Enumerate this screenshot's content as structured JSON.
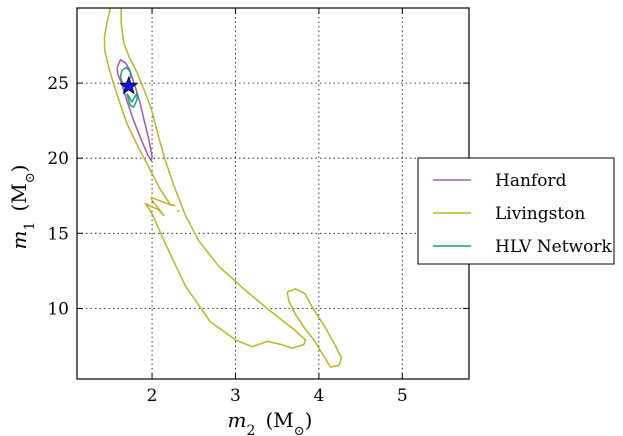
{
  "chart_data": {
    "type": "line",
    "title": "",
    "xlabel_var": "m",
    "xlabel_sub": "2",
    "xlabel_unit": "(M",
    "xlabel_unit_sub": "⊙",
    "xlabel_close": ")",
    "ylabel_var": "m",
    "ylabel_sub": "1",
    "ylabel_unit": "(M",
    "ylabel_unit_sub": "⊙",
    "ylabel_close": ")",
    "xlim": [
      1.1,
      5.8
    ],
    "ylim": [
      5.3,
      30
    ],
    "xticks": [
      2,
      3,
      4,
      5
    ],
    "yticks": [
      10,
      15,
      20,
      25
    ],
    "xtick_labels": [
      "2",
      "3",
      "4",
      "5"
    ],
    "ytick_labels": [
      "10",
      "15",
      "20",
      "25"
    ],
    "grid": true,
    "legend_position": "right",
    "series": [
      {
        "name": "Hanford",
        "color": "#a35aa8",
        "contours": [
          [
            [
              1.58,
              26.0
            ],
            [
              1.62,
              26.55
            ],
            [
              1.68,
              26.35
            ],
            [
              1.73,
              25.9
            ],
            [
              1.79,
              24.9
            ],
            [
              1.85,
              23.8
            ],
            [
              1.91,
              22.4
            ],
            [
              1.96,
              21.3
            ],
            [
              2.0,
              20.1
            ],
            [
              1.99,
              19.85
            ],
            [
              1.95,
              20.2
            ],
            [
              1.88,
              21.1
            ],
            [
              1.78,
              22.5
            ],
            [
              1.7,
              23.8
            ],
            [
              1.64,
              24.9
            ],
            [
              1.59,
              25.6
            ],
            [
              1.58,
              26.0
            ]
          ]
        ]
      },
      {
        "name": "Livingston",
        "color": "#bdb22a",
        "contours": [
          [
            [
              1.5,
              30.0
            ],
            [
              1.46,
              29.0
            ],
            [
              1.43,
              28.1
            ],
            [
              1.43,
              27.3
            ],
            [
              1.46,
              26.5
            ],
            [
              1.52,
              25.3
            ],
            [
              1.6,
              23.9
            ],
            [
              1.7,
              22.3
            ],
            [
              1.82,
              20.9
            ],
            [
              1.96,
              19.4
            ],
            [
              2.1,
              17.9
            ],
            [
              2.22,
              16.9
            ],
            [
              2.28,
              16.85
            ]
          ],
          [
            [
              1.63,
              30.0
            ],
            [
              1.63,
              29.0
            ],
            [
              1.66,
              27.7
            ],
            [
              1.72,
              26.8
            ],
            [
              1.82,
              25.7
            ],
            [
              1.93,
              24.2
            ],
            [
              2.0,
              23.1
            ],
            [
              2.07,
              21.6
            ],
            [
              2.15,
              20.0
            ],
            [
              2.26,
              18.2
            ],
            [
              2.4,
              16.2
            ],
            [
              2.56,
              14.5
            ],
            [
              2.8,
              12.8
            ],
            [
              3.1,
              11.3
            ],
            [
              3.4,
              9.9
            ],
            [
              3.7,
              8.6
            ],
            [
              3.84,
              7.9
            ],
            [
              3.82,
              7.6
            ],
            [
              3.68,
              7.35
            ],
            [
              3.55,
              7.6
            ],
            [
              3.38,
              7.8
            ],
            [
              3.2,
              7.45
            ],
            [
              3.0,
              7.9
            ],
            [
              2.7,
              9.1
            ],
            [
              2.4,
              11.5
            ],
            [
              2.16,
              14.3
            ],
            [
              2.0,
              16.3
            ],
            [
              1.92,
              17.0
            ],
            [
              1.98,
              16.8
            ],
            [
              2.07,
              16.6
            ],
            [
              2.14,
              16.2
            ],
            [
              2.0,
              17.2
            ],
            [
              1.99,
              17.4
            ],
            [
              2.22,
              16.9
            ],
            [
              2.28,
              16.85
            ]
          ],
          [
            [
              3.62,
              11.1
            ],
            [
              3.72,
              11.3
            ],
            [
              3.83,
              11.0
            ],
            [
              3.93,
              10.0
            ],
            [
              4.08,
              8.7
            ],
            [
              4.2,
              7.5
            ],
            [
              4.27,
              6.7
            ],
            [
              4.24,
              6.2
            ],
            [
              4.14,
              6.1
            ],
            [
              4.05,
              6.9
            ],
            [
              3.94,
              7.9
            ],
            [
              3.84,
              8.6
            ],
            [
              3.72,
              9.6
            ],
            [
              3.64,
              10.5
            ],
            [
              3.62,
              11.1
            ]
          ],
          [
            [
              2.3,
              16.45
            ],
            [
              2.33,
              16.5
            ]
          ]
        ]
      },
      {
        "name": "HLV Network",
        "color": "#1f9c7e",
        "contours": [
          [
            [
              1.62,
              25.4
            ],
            [
              1.64,
              25.85
            ],
            [
              1.69,
              26.05
            ],
            [
              1.74,
              25.75
            ],
            [
              1.74,
              25.35
            ],
            [
              1.7,
              25.05
            ],
            [
              1.66,
              24.85
            ],
            [
              1.64,
              25.1
            ],
            [
              1.62,
              25.4
            ]
          ],
          [
            [
              1.7,
              24.3
            ],
            [
              1.76,
              23.75
            ],
            [
              1.82,
              24.35
            ],
            [
              1.82,
              23.9
            ],
            [
              1.78,
              23.4
            ],
            [
              1.74,
              23.5
            ],
            [
              1.72,
              23.85
            ],
            [
              1.7,
              24.3
            ]
          ]
        ]
      }
    ],
    "marker": {
      "type": "star",
      "x": 1.72,
      "y": 24.8,
      "fill": "#1414e6",
      "stroke": "#000000"
    }
  }
}
